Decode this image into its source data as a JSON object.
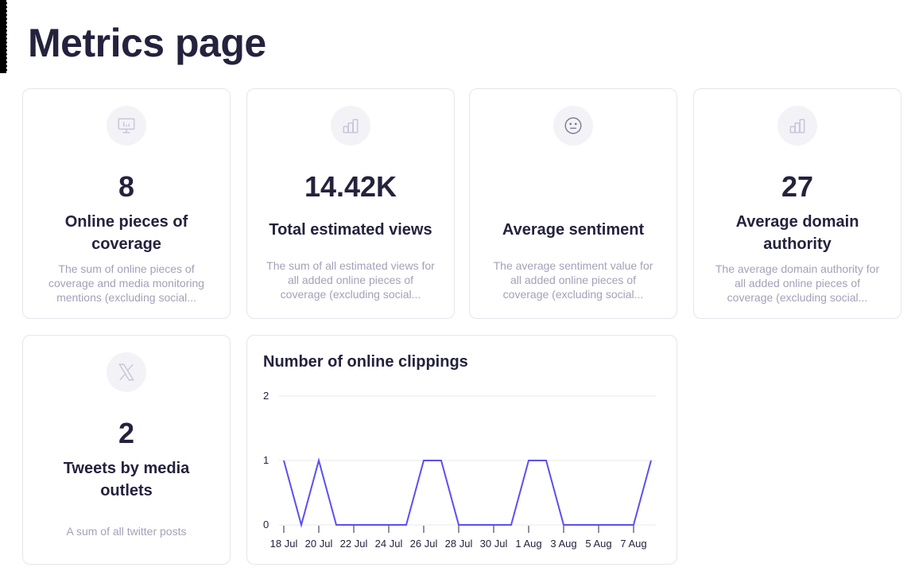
{
  "page": {
    "title": "Metrics page"
  },
  "cards": [
    {
      "icon": "monitor-chart-icon",
      "value": "8",
      "label": "Online pieces of coverage",
      "description": "The sum of online pieces of coverage and media monitoring mentions (excluding social..."
    },
    {
      "icon": "bar-chart-icon",
      "value": "14.42K",
      "label": "Total estimated views",
      "description": "The sum of all estimated views for all added online pieces of coverage (excluding social..."
    },
    {
      "icon": "neutral-face-icon",
      "value": "",
      "label": "Average sentiment",
      "description": "The average sentiment value for all added online pieces of coverage (excluding social..."
    },
    {
      "icon": "bar-chart-icon",
      "value": "27",
      "label": "Average domain authority",
      "description": "The average domain authority for all added online pieces of coverage (excluding social..."
    },
    {
      "icon": "x-logo-icon",
      "value": "2",
      "label": "Tweets by media outlets",
      "description": "A sum of all twitter posts"
    }
  ],
  "colors": {
    "line": "#5b4ff0",
    "text": "#24223d",
    "muted": "#a3a1b7",
    "icon_bg": "#f3f2f7"
  },
  "chart_data": {
    "type": "line",
    "title": "Number of online clippings",
    "xlabel": "",
    "ylabel": "",
    "ylim": [
      0,
      2
    ],
    "yticks": [
      0,
      1,
      2
    ],
    "grid": true,
    "legend": null,
    "x": [
      "18 Jul",
      "19 Jul",
      "20 Jul",
      "21 Jul",
      "22 Jul",
      "23 Jul",
      "24 Jul",
      "25 Jul",
      "26 Jul",
      "27 Jul",
      "28 Jul",
      "29 Jul",
      "30 Jul",
      "31 Jul",
      "1 Aug",
      "2 Aug",
      "3 Aug",
      "4 Aug",
      "5 Aug",
      "6 Aug",
      "7 Aug",
      "8 Aug"
    ],
    "xtick_labels": [
      "18 Jul",
      "20 Jul",
      "22 Jul",
      "24 Jul",
      "26 Jul",
      "28 Jul",
      "30 Jul",
      "1 Aug",
      "3 Aug",
      "5 Aug",
      "7 Aug"
    ],
    "series": [
      {
        "name": "Online clippings",
        "values": [
          1,
          0,
          1,
          0,
          0,
          0,
          0,
          0,
          1,
          1,
          0,
          0,
          0,
          0,
          1,
          1,
          0,
          0,
          0,
          0,
          0,
          1
        ]
      }
    ]
  }
}
